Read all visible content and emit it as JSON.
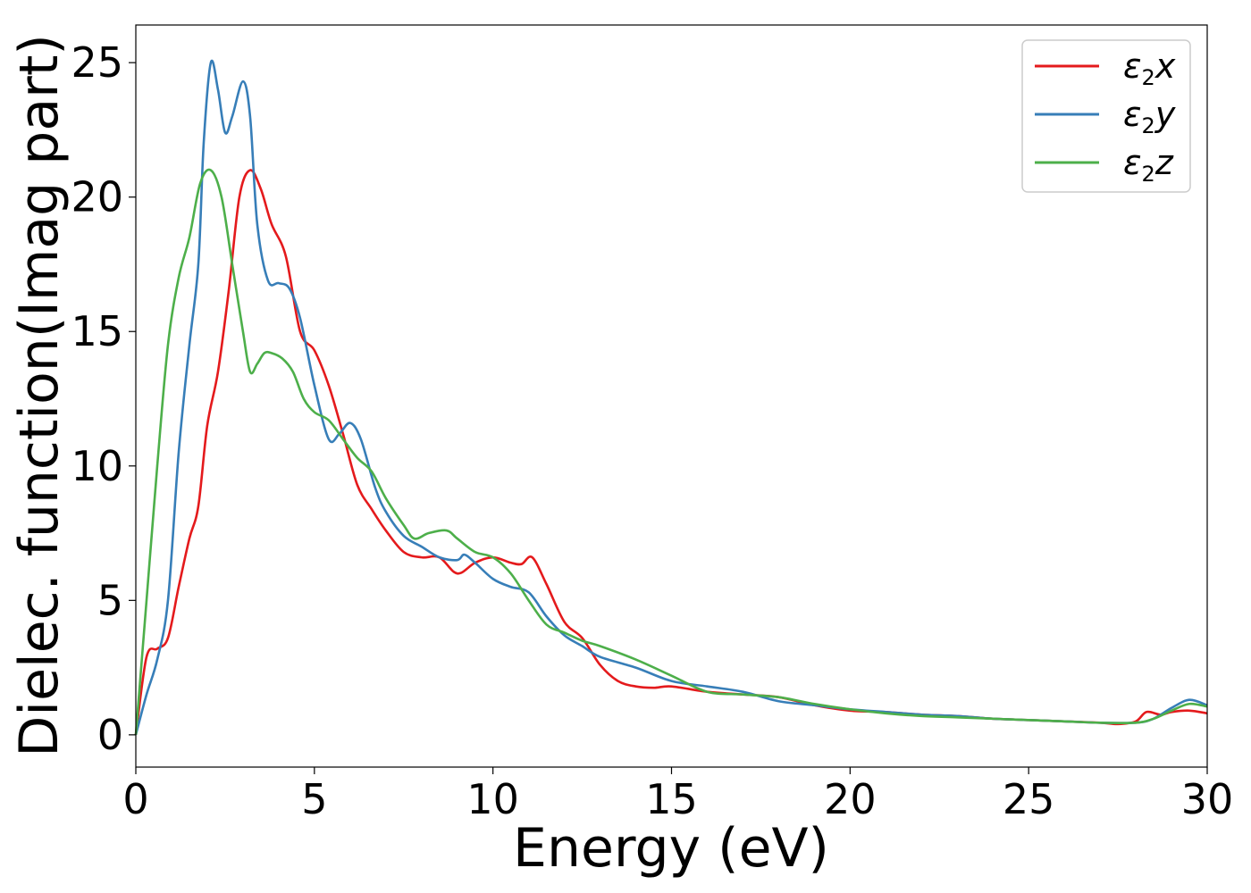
{
  "chart_data": {
    "type": "line",
    "xlabel": "Energy (eV)",
    "ylabel": "Dielec. function(Imag part)",
    "xlim": [
      0,
      30
    ],
    "ylim": [
      -1.2,
      26.4
    ],
    "xticks": [
      "0",
      "5",
      "10",
      "15",
      "20",
      "25",
      "30"
    ],
    "yticks": [
      "0",
      "5",
      "10",
      "15",
      "20",
      "25"
    ],
    "grid": false,
    "legend_position": "top-right",
    "series": [
      {
        "name": "ε2x",
        "legend": {
          "main": "ε",
          "sub": "2",
          "suffix": "x"
        },
        "color": "#e41a1c",
        "x": [
          0,
          0.3,
          0.6,
          0.9,
          1.2,
          1.5,
          1.75,
          2.0,
          2.3,
          2.6,
          2.9,
          3.2,
          3.5,
          3.8,
          4.2,
          4.6,
          5.0,
          5.4,
          5.8,
          6.2,
          6.6,
          7.0,
          7.5,
          8.0,
          8.5,
          9.0,
          9.5,
          10.0,
          10.5,
          10.8,
          11.1,
          11.5,
          12.0,
          12.5,
          13.0,
          13.5,
          14.0,
          14.5,
          15.0,
          16.0,
          17.0,
          18.0,
          19.0,
          20.0,
          21.0,
          22.0,
          23.0,
          24.0,
          25.0,
          26.0,
          27.0,
          27.5,
          28.0,
          28.3,
          28.7,
          29.0,
          29.5,
          30.0
        ],
        "y": [
          0,
          2.9,
          3.2,
          3.6,
          5.5,
          7.3,
          8.5,
          11.5,
          13.5,
          16.5,
          20.0,
          21.0,
          20.3,
          19.0,
          17.8,
          15.0,
          14.3,
          13.0,
          11.2,
          9.3,
          8.4,
          7.6,
          6.8,
          6.6,
          6.6,
          6.0,
          6.4,
          6.6,
          6.4,
          6.35,
          6.6,
          5.6,
          4.2,
          3.6,
          2.6,
          2.0,
          1.8,
          1.75,
          1.8,
          1.6,
          1.5,
          1.4,
          1.1,
          0.9,
          0.85,
          0.75,
          0.7,
          0.6,
          0.55,
          0.5,
          0.45,
          0.4,
          0.5,
          0.85,
          0.75,
          0.85,
          0.9,
          0.8
        ]
      },
      {
        "name": "ε2y",
        "legend": {
          "main": "ε",
          "sub": "2",
          "suffix": "y"
        },
        "color": "#377eb8",
        "x": [
          0,
          0.3,
          0.6,
          0.9,
          1.2,
          1.5,
          1.75,
          1.9,
          2.1,
          2.3,
          2.5,
          2.7,
          3.0,
          3.2,
          3.4,
          3.7,
          4.0,
          4.3,
          4.6,
          5.0,
          5.4,
          5.7,
          6.0,
          6.3,
          6.7,
          7.0,
          7.5,
          8.0,
          8.5,
          9.0,
          9.2,
          9.5,
          10.0,
          10.5,
          11.0,
          11.5,
          12.0,
          12.5,
          13.0,
          14.0,
          15.0,
          16.0,
          17.0,
          18.0,
          19.0,
          20.0,
          21.0,
          22.0,
          23.0,
          24.0,
          25.0,
          26.0,
          27.0,
          28.0,
          28.5,
          29.0,
          29.5,
          30.0
        ],
        "y": [
          0,
          1.5,
          2.8,
          5.0,
          10.5,
          14.5,
          17.5,
          22.0,
          25.0,
          24.0,
          22.4,
          23.0,
          24.3,
          23.0,
          19.0,
          16.9,
          16.8,
          16.6,
          15.5,
          13.0,
          11.0,
          11.2,
          11.6,
          11.0,
          9.2,
          8.3,
          7.4,
          7.0,
          6.6,
          6.5,
          6.7,
          6.4,
          5.8,
          5.5,
          5.3,
          4.4,
          3.7,
          3.3,
          2.9,
          2.5,
          2.0,
          1.8,
          1.6,
          1.25,
          1.1,
          0.95,
          0.85,
          0.75,
          0.7,
          0.6,
          0.55,
          0.5,
          0.45,
          0.45,
          0.6,
          1.0,
          1.3,
          1.1
        ]
      },
      {
        "name": "ε2z",
        "legend": {
          "main": "ε",
          "sub": "2",
          "suffix": "z"
        },
        "color": "#4daf4a",
        "x": [
          0,
          0.3,
          0.6,
          0.9,
          1.2,
          1.5,
          1.8,
          2.1,
          2.4,
          2.7,
          3.0,
          3.2,
          3.4,
          3.6,
          3.8,
          4.1,
          4.4,
          4.7,
          5.0,
          5.4,
          5.8,
          6.2,
          6.6,
          7.0,
          7.5,
          7.8,
          8.2,
          8.7,
          9.0,
          9.5,
          10.0,
          10.5,
          11.0,
          11.5,
          12.0,
          12.5,
          13.0,
          14.0,
          15.0,
          16.0,
          17.0,
          18.0,
          19.0,
          20.0,
          21.0,
          22.0,
          23.0,
          24.0,
          25.0,
          26.0,
          27.0,
          28.0,
          28.5,
          29.0,
          29.5,
          30.0
        ],
        "y": [
          0,
          5.0,
          10.0,
          14.5,
          17.0,
          18.5,
          20.5,
          21.0,
          20.0,
          17.5,
          15.0,
          13.5,
          13.8,
          14.2,
          14.2,
          14.0,
          13.5,
          12.5,
          12.0,
          11.7,
          11.0,
          10.3,
          9.8,
          8.8,
          7.8,
          7.3,
          7.5,
          7.6,
          7.3,
          6.8,
          6.6,
          6.0,
          5.0,
          4.1,
          3.8,
          3.5,
          3.3,
          2.8,
          2.2,
          1.6,
          1.5,
          1.4,
          1.15,
          0.95,
          0.8,
          0.7,
          0.65,
          0.6,
          0.55,
          0.5,
          0.45,
          0.45,
          0.6,
          0.9,
          1.15,
          1.05
        ]
      }
    ]
  }
}
